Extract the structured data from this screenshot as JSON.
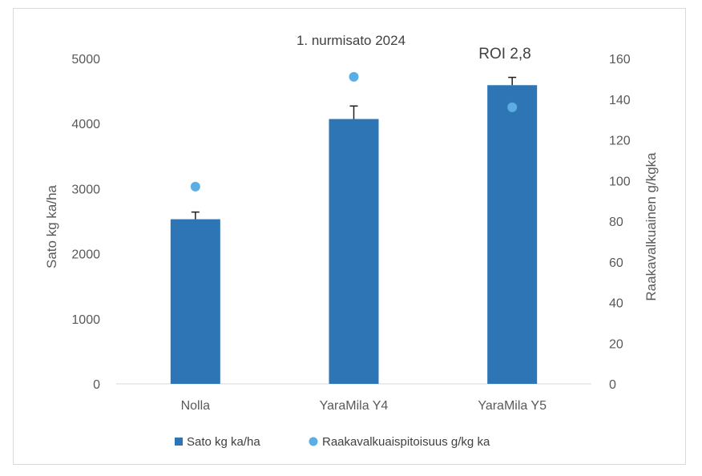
{
  "chart_data": {
    "type": "bar",
    "title": "1. nurmisato 2024",
    "annotation": "ROI 2,8",
    "categories": [
      "Nolla",
      "YaraMila Y4",
      "YaraMila Y5"
    ],
    "series": [
      {
        "name": "Sato kg ka/ha",
        "type": "bar",
        "axis": "left",
        "color": "#2e75b6",
        "values": [
          2530,
          4070,
          4590
        ],
        "error_upper": [
          110,
          200,
          120
        ]
      },
      {
        "name": "Raakavalkuaispitoisuus g/kg ka",
        "type": "scatter",
        "axis": "right",
        "color": "#5aaee3",
        "values": [
          97,
          151,
          136
        ]
      }
    ],
    "ylabel": "Sato kg ka/ha",
    "y2label": "Raakavalkuainen g/kgka",
    "ylim": [
      0,
      5000
    ],
    "y2lim": [
      0,
      160
    ],
    "yticks": [
      "0",
      "1000",
      "2000",
      "3000",
      "4000",
      "5000"
    ],
    "y2ticks": [
      "0",
      "20",
      "40",
      "60",
      "80",
      "100",
      "120",
      "140",
      "160"
    ],
    "grid": false,
    "legend": "bottom"
  }
}
